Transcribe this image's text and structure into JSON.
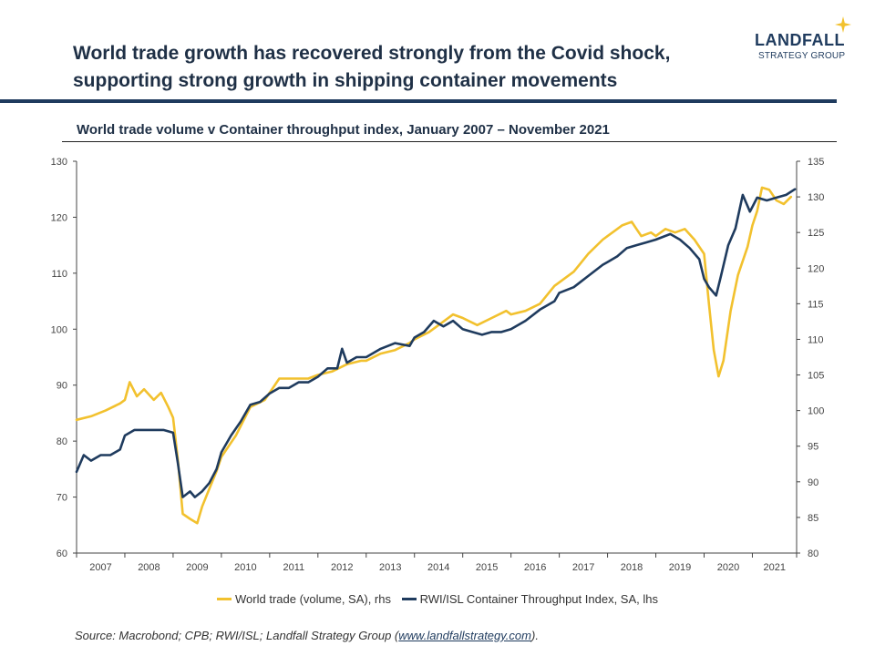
{
  "header": {
    "title_line1": "World trade growth has recovered strongly from the Covid shock,",
    "title_line2": "supporting strong growth in shipping container movements",
    "brand_name": "LANDFALL",
    "brand_sub": "STRATEGY GROUP"
  },
  "colors": {
    "world_trade": "#f2c12e",
    "container": "#1f3b5e"
  },
  "footer": {
    "source_prefix": "Source: Macrobond; CPB; RWI/ISL; Landfall Strategy Group (",
    "source_link": "www.landfallstrategy.com",
    "source_suffix": ")."
  },
  "chart_data": {
    "type": "line",
    "title": "World trade volume v Container throughput index, January 2007 – November 2021",
    "x_ticks": [
      "2007",
      "2008",
      "2009",
      "2010",
      "2011",
      "2012",
      "2013",
      "2014",
      "2015",
      "2016",
      "2017",
      "2018",
      "2019",
      "2020",
      "2021"
    ],
    "y_left": {
      "min": 60,
      "max": 130,
      "ticks": [
        60,
        70,
        80,
        90,
        100,
        110,
        120,
        130
      ]
    },
    "y_right": {
      "min": 80,
      "max": 135,
      "ticks": [
        80,
        85,
        90,
        95,
        100,
        105,
        110,
        115,
        120,
        125,
        130,
        135
      ]
    },
    "grid": false,
    "legend_position": "bottom",
    "series": [
      {
        "name": "World trade (volume, SA), rhs",
        "axis": "right",
        "points": [
          [
            2007.0,
            98.7
          ],
          [
            2007.3,
            99.2
          ],
          [
            2007.6,
            100.0
          ],
          [
            2007.9,
            101.0
          ],
          [
            2008.0,
            101.5
          ],
          [
            2008.1,
            104.0
          ],
          [
            2008.25,
            102.0
          ],
          [
            2008.4,
            103.0
          ],
          [
            2008.6,
            101.5
          ],
          [
            2008.75,
            102.5
          ],
          [
            2008.9,
            100.5
          ],
          [
            2009.0,
            99.0
          ],
          [
            2009.1,
            93.0
          ],
          [
            2009.2,
            85.5
          ],
          [
            2009.35,
            84.8
          ],
          [
            2009.5,
            84.2
          ],
          [
            2009.6,
            86.5
          ],
          [
            2009.75,
            89.0
          ],
          [
            2009.9,
            91.5
          ],
          [
            2010.0,
            93.5
          ],
          [
            2010.3,
            96.5
          ],
          [
            2010.6,
            100.5
          ],
          [
            2010.9,
            101.5
          ],
          [
            2011.0,
            102.5
          ],
          [
            2011.2,
            104.5
          ],
          [
            2011.5,
            104.5
          ],
          [
            2011.8,
            104.5
          ],
          [
            2012.0,
            105.0
          ],
          [
            2012.3,
            105.5
          ],
          [
            2012.6,
            106.5
          ],
          [
            2012.9,
            107.0
          ],
          [
            2013.0,
            107.0
          ],
          [
            2013.3,
            108.0
          ],
          [
            2013.6,
            108.5
          ],
          [
            2013.9,
            109.5
          ],
          [
            2014.0,
            110.0
          ],
          [
            2014.3,
            111.0
          ],
          [
            2014.6,
            112.5
          ],
          [
            2014.8,
            113.5
          ],
          [
            2015.0,
            113.0
          ],
          [
            2015.3,
            112.0
          ],
          [
            2015.6,
            113.0
          ],
          [
            2015.9,
            114.0
          ],
          [
            2016.0,
            113.5
          ],
          [
            2016.3,
            114.0
          ],
          [
            2016.6,
            115.0
          ],
          [
            2016.9,
            117.5
          ],
          [
            2017.0,
            118.0
          ],
          [
            2017.3,
            119.5
          ],
          [
            2017.6,
            122.0
          ],
          [
            2017.9,
            124.0
          ],
          [
            2018.0,
            124.5
          ],
          [
            2018.3,
            126.0
          ],
          [
            2018.5,
            126.5
          ],
          [
            2018.6,
            125.5
          ],
          [
            2018.7,
            124.5
          ],
          [
            2018.9,
            125.0
          ],
          [
            2019.0,
            124.5
          ],
          [
            2019.2,
            125.5
          ],
          [
            2019.4,
            125.0
          ],
          [
            2019.6,
            125.5
          ],
          [
            2019.8,
            124.0
          ],
          [
            2020.0,
            122.0
          ],
          [
            2020.1,
            115.0
          ],
          [
            2020.2,
            108.5
          ],
          [
            2020.3,
            104.8
          ],
          [
            2020.4,
            107.0
          ],
          [
            2020.55,
            114.0
          ],
          [
            2020.7,
            119.0
          ],
          [
            2020.9,
            123.0
          ],
          [
            2021.0,
            126.0
          ],
          [
            2021.1,
            128.0
          ],
          [
            2021.2,
            131.3
          ],
          [
            2021.35,
            131.0
          ],
          [
            2021.5,
            129.5
          ],
          [
            2021.65,
            129.0
          ],
          [
            2021.8,
            130.0
          ]
        ]
      },
      {
        "name": "RWI/ISL Container Throughput Index, SA, lhs",
        "axis": "left",
        "points": [
          [
            2007.0,
            74.5
          ],
          [
            2007.15,
            77.5
          ],
          [
            2007.3,
            76.5
          ],
          [
            2007.5,
            77.5
          ],
          [
            2007.7,
            77.5
          ],
          [
            2007.9,
            78.5
          ],
          [
            2008.0,
            81.0
          ],
          [
            2008.2,
            82.0
          ],
          [
            2008.5,
            82.0
          ],
          [
            2008.8,
            82.0
          ],
          [
            2009.0,
            81.5
          ],
          [
            2009.1,
            76.0
          ],
          [
            2009.2,
            70.0
          ],
          [
            2009.35,
            71.0
          ],
          [
            2009.45,
            70.0
          ],
          [
            2009.6,
            71.0
          ],
          [
            2009.75,
            72.5
          ],
          [
            2009.9,
            75.0
          ],
          [
            2010.0,
            78.0
          ],
          [
            2010.2,
            81.0
          ],
          [
            2010.4,
            83.5
          ],
          [
            2010.6,
            86.5
          ],
          [
            2010.8,
            87.0
          ],
          [
            2011.0,
            88.5
          ],
          [
            2011.2,
            89.5
          ],
          [
            2011.4,
            89.5
          ],
          [
            2011.6,
            90.5
          ],
          [
            2011.8,
            90.5
          ],
          [
            2012.0,
            91.5
          ],
          [
            2012.2,
            93.0
          ],
          [
            2012.4,
            93.0
          ],
          [
            2012.5,
            96.5
          ],
          [
            2012.6,
            94.0
          ],
          [
            2012.8,
            95.0
          ],
          [
            2013.0,
            95.0
          ],
          [
            2013.3,
            96.5
          ],
          [
            2013.6,
            97.5
          ],
          [
            2013.9,
            97.0
          ],
          [
            2014.0,
            98.5
          ],
          [
            2014.2,
            99.5
          ],
          [
            2014.4,
            101.5
          ],
          [
            2014.6,
            100.5
          ],
          [
            2014.8,
            101.5
          ],
          [
            2015.0,
            100.0
          ],
          [
            2015.2,
            99.5
          ],
          [
            2015.4,
            99.0
          ],
          [
            2015.6,
            99.5
          ],
          [
            2015.8,
            99.5
          ],
          [
            2016.0,
            100.0
          ],
          [
            2016.3,
            101.5
          ],
          [
            2016.6,
            103.5
          ],
          [
            2016.9,
            105.0
          ],
          [
            2017.0,
            106.5
          ],
          [
            2017.3,
            107.5
          ],
          [
            2017.6,
            109.5
          ],
          [
            2017.9,
            111.5
          ],
          [
            2018.0,
            112.0
          ],
          [
            2018.2,
            113.0
          ],
          [
            2018.4,
            114.5
          ],
          [
            2018.6,
            115.0
          ],
          [
            2018.8,
            115.5
          ],
          [
            2019.0,
            116.0
          ],
          [
            2019.3,
            117.0
          ],
          [
            2019.5,
            116.0
          ],
          [
            2019.7,
            114.5
          ],
          [
            2019.9,
            112.5
          ],
          [
            2020.0,
            109.0
          ],
          [
            2020.1,
            107.5
          ],
          [
            2020.25,
            106.0
          ],
          [
            2020.35,
            109.5
          ],
          [
            2020.5,
            115.0
          ],
          [
            2020.65,
            118.0
          ],
          [
            2020.8,
            124.0
          ],
          [
            2020.95,
            121.0
          ],
          [
            2021.1,
            123.5
          ],
          [
            2021.3,
            123.0
          ],
          [
            2021.5,
            123.5
          ],
          [
            2021.7,
            124.0
          ],
          [
            2021.88,
            125.0
          ]
        ]
      }
    ]
  }
}
